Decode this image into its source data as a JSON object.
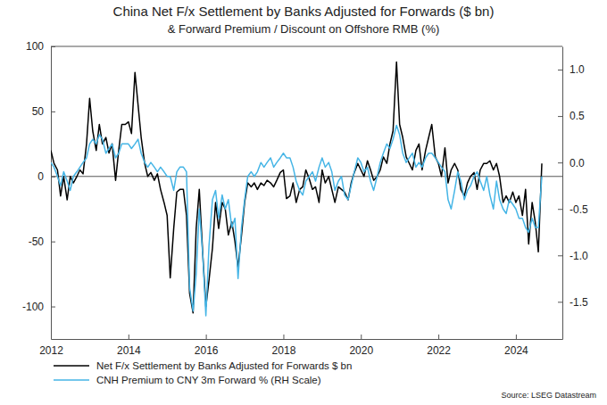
{
  "chart_data": {
    "type": "line",
    "title": "China Net F/x Settlement by Banks Adjusted for Forwards ($ bn)",
    "subtitle": "& Forward Premium / Discount on Offshore RMB (%)",
    "source": "Source: LSEG Datastream",
    "legend": "bottom-left",
    "xlim": [
      2012,
      2025.2
    ],
    "xticks": [
      2012,
      2014,
      2016,
      2018,
      2020,
      2022,
      2024
    ],
    "ylim": [
      -125,
      100
    ],
    "yticks": [
      -100,
      -50,
      0,
      50,
      100
    ],
    "y2lim": [
      -1.9,
      1.25
    ],
    "y2ticks": [
      {
        "value": -1.5,
        "label": "-1.5"
      },
      {
        "value": -1,
        "label": "-1.0"
      },
      -0.5,
      {
        "value": 0,
        "label": "0.0"
      },
      0.5,
      {
        "value": 1,
        "label": "1.0"
      }
    ],
    "x": [
      2012,
      2012.08,
      2012.17,
      2012.25,
      2012.33,
      2012.42,
      2012.5,
      2012.58,
      2012.67,
      2012.75,
      2012.83,
      2012.92,
      2013,
      2013.08,
      2013.17,
      2013.25,
      2013.33,
      2013.42,
      2013.5,
      2013.58,
      2013.67,
      2013.75,
      2013.83,
      2013.92,
      2014,
      2014.08,
      2014.17,
      2014.25,
      2014.33,
      2014.42,
      2014.5,
      2014.58,
      2014.67,
      2014.75,
      2014.83,
      2014.92,
      2015,
      2015.08,
      2015.17,
      2015.25,
      2015.33,
      2015.42,
      2015.5,
      2015.58,
      2015.67,
      2015.75,
      2015.83,
      2015.92,
      2016,
      2016.08,
      2016.17,
      2016.25,
      2016.33,
      2016.42,
      2016.5,
      2016.58,
      2016.67,
      2016.75,
      2016.83,
      2016.92,
      2017,
      2017.08,
      2017.17,
      2017.25,
      2017.33,
      2017.42,
      2017.5,
      2017.58,
      2017.67,
      2017.75,
      2017.83,
      2017.92,
      2018,
      2018.08,
      2018.17,
      2018.25,
      2018.33,
      2018.42,
      2018.5,
      2018.58,
      2018.67,
      2018.75,
      2018.83,
      2018.92,
      2019,
      2019.08,
      2019.17,
      2019.25,
      2019.33,
      2019.42,
      2019.5,
      2019.58,
      2019.67,
      2019.75,
      2019.83,
      2019.92,
      2020,
      2020.08,
      2020.17,
      2020.25,
      2020.33,
      2020.42,
      2020.5,
      2020.58,
      2020.67,
      2020.75,
      2020.83,
      2020.92,
      2021,
      2021.08,
      2021.17,
      2021.25,
      2021.33,
      2021.42,
      2021.5,
      2021.58,
      2021.67,
      2021.75,
      2021.83,
      2021.92,
      2022,
      2022.08,
      2022.17,
      2022.25,
      2022.33,
      2022.42,
      2022.5,
      2022.58,
      2022.67,
      2022.75,
      2022.83,
      2022.92,
      2023,
      2023.08,
      2023.17,
      2023.25,
      2023.33,
      2023.42,
      2023.5,
      2023.58,
      2023.67,
      2023.75,
      2023.83,
      2023.92,
      2024,
      2024.08,
      2024.17,
      2024.25,
      2024.33,
      2024.42,
      2024.5,
      2024.58,
      2024.67
    ],
    "series": [
      {
        "name": "Net F/x Settlement by Banks Adjusted for Forwards $ bn",
        "color": "#000000",
        "type": "line",
        "values": [
          20,
          10,
          5,
          -15,
          0,
          -18,
          0,
          -5,
          0,
          5,
          2,
          25,
          60,
          35,
          20,
          40,
          25,
          30,
          18,
          25,
          -3,
          20,
          40,
          40,
          42,
          33,
          80,
          55,
          30,
          10,
          0,
          3,
          -3,
          2,
          -10,
          -20,
          -30,
          -78,
          -40,
          -12,
          -10,
          -10,
          -30,
          -90,
          -105,
          -40,
          -10,
          -60,
          -100,
          -80,
          -55,
          -20,
          -40,
          -20,
          -25,
          -45,
          -35,
          -50,
          -70,
          -45,
          -20,
          -5,
          -8,
          -5,
          -10,
          -5,
          -7,
          -3,
          -5,
          -8,
          -3,
          3,
          5,
          -17,
          -15,
          -5,
          -20,
          -10,
          -8,
          5,
          -2,
          -10,
          -8,
          -20,
          5,
          -5,
          0,
          -10,
          -20,
          -8,
          -10,
          -12,
          -18,
          -5,
          3,
          10,
          5,
          0,
          12,
          5,
          -3,
          0,
          5,
          15,
          10,
          25,
          35,
          88,
          40,
          30,
          15,
          10,
          5,
          20,
          25,
          5,
          20,
          30,
          40,
          15,
          10,
          0,
          22,
          -5,
          5,
          10,
          5,
          -10,
          -15,
          -5,
          0,
          3,
          -10,
          5,
          10,
          10,
          12,
          5,
          10,
          0,
          -20,
          -15,
          -20,
          -12,
          -20,
          -15,
          -30,
          -10,
          -52,
          -20,
          -35,
          -58,
          10
        ]
      },
      {
        "name": "CNH Premium to CNY 3m Forward % (RH Scale)",
        "color": "#45b5e6",
        "type": "line",
        "axis": "y2",
        "values": [
          0,
          -0.05,
          -0.15,
          -0.25,
          -0.1,
          -0.2,
          -0.3,
          -0.15,
          -0.1,
          -0.05,
          0,
          0.05,
          0.2,
          0.25,
          0.2,
          0.3,
          0.25,
          0.1,
          0.15,
          0.2,
          0.05,
          0.1,
          0.2,
          0.2,
          0.2,
          0.15,
          0.2,
          0.25,
          0.1,
          0,
          -0.05,
          0,
          -0.05,
          -0.1,
          -0.05,
          -0.1,
          -0.15,
          -0.15,
          -0.3,
          -0.1,
          -0.05,
          -0.05,
          -0.1,
          -1.35,
          -1.6,
          -1.2,
          -0.5,
          -1.0,
          -1.65,
          -0.9,
          -0.4,
          -0.3,
          -0.6,
          -0.35,
          -0.5,
          -0.4,
          -0.7,
          -0.6,
          -1.25,
          -0.7,
          -0.4,
          -0.15,
          -0.1,
          -0.15,
          -0.1,
          0,
          -0.05,
          0,
          0.05,
          -0.05,
          0,
          0.05,
          0.1,
          0.05,
          0.05,
          -0.05,
          -0.2,
          -0.3,
          -0.35,
          -0.2,
          -0.15,
          -0.1,
          -0.2,
          -0.05,
          0.05,
          -0.05,
          0,
          -0.1,
          -0.3,
          -0.2,
          -0.15,
          -0.35,
          -0.4,
          -0.25,
          -0.1,
          0.05,
          0,
          -0.1,
          -0.05,
          -0.2,
          -0.3,
          -0.15,
          0,
          0.1,
          0.2,
          0.15,
          0.25,
          0.4,
          0.3,
          0.1,
          0,
          0.05,
          0.1,
          -0.05,
          0,
          -0.05,
          0.05,
          0.1,
          0.1,
          0.05,
          0,
          -0.05,
          -0.1,
          -0.4,
          -0.5,
          -0.3,
          -0.1,
          -0.2,
          -0.4,
          -0.3,
          -0.25,
          -0.15,
          -0.1,
          -0.2,
          -0.3,
          -0.15,
          -0.35,
          -0.5,
          -0.2,
          -0.4,
          -0.5,
          -0.55,
          -0.4,
          -0.45,
          -0.5,
          -0.6,
          -0.6,
          -0.7,
          -0.75,
          -0.6,
          -0.7,
          -0.7,
          -0.15
        ]
      }
    ]
  }
}
